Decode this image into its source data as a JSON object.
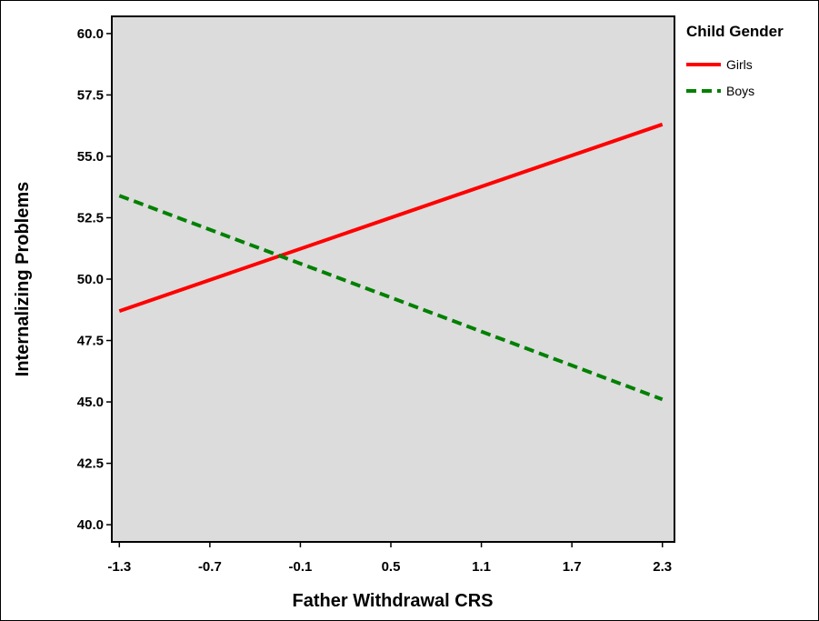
{
  "chart_data": {
    "type": "line",
    "title": "",
    "xlabel": "Father Withdrawal CRS",
    "ylabel": "Internalizing Problems",
    "xlim": [
      -1.35,
      2.38
    ],
    "ylim": [
      39.3,
      60.7
    ],
    "x_ticks": [
      -1.3,
      -0.7,
      -0.1,
      0.5,
      1.1,
      1.7,
      2.3
    ],
    "x_tick_labels": [
      "-1.3",
      "-0.7",
      "-0.1",
      "0.5",
      "1.1",
      "1.7",
      "2.3"
    ],
    "y_ticks": [
      40.0,
      42.5,
      45.0,
      47.5,
      50.0,
      52.5,
      55.0,
      57.5,
      60.0
    ],
    "y_tick_labels": [
      "40.0",
      "42.5",
      "45.0",
      "47.5",
      "50.0",
      "52.5",
      "55.0",
      "57.5",
      "60.0"
    ],
    "grid": false,
    "background_color": "#dcdcdc",
    "legend": {
      "title": "Child Gender",
      "position": "right-top"
    },
    "series": [
      {
        "name": "Girls",
        "x": [
          -1.3,
          2.3
        ],
        "y": [
          48.7,
          56.3
        ],
        "color": "#ff0000",
        "dash": "solid"
      },
      {
        "name": "Boys",
        "x": [
          -1.3,
          2.3
        ],
        "y": [
          53.4,
          45.1
        ],
        "color": "#008000",
        "dash": "dashed"
      }
    ]
  }
}
